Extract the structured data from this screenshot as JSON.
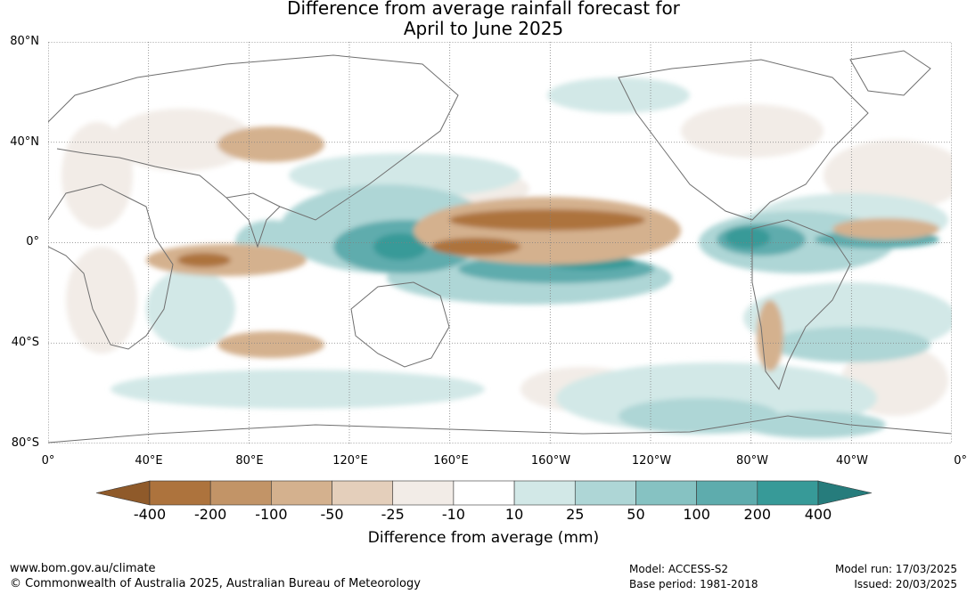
{
  "title": {
    "line1": "Difference from average rainfall forecast for",
    "line2": "April to June 2025"
  },
  "axes": {
    "lat_labels": [
      "80°N",
      "40°N",
      "0°",
      "40°S",
      "80°S"
    ],
    "lon_labels": [
      "0°",
      "40°E",
      "80°E",
      "120°E",
      "160°E",
      "160°W",
      "120°W",
      "80°W",
      "40°W",
      "0°"
    ],
    "lat_range": [
      -80,
      80
    ],
    "lon_range": [
      0,
      360
    ],
    "gridlines": "dotted"
  },
  "colorbar": {
    "labels": [
      "-400",
      "-200",
      "-100",
      "-50",
      "-25",
      "-10",
      "10",
      "25",
      "50",
      "100",
      "200",
      "400"
    ],
    "colors": [
      "#8f5a2a",
      "#ad733d",
      "#c29467",
      "#d4b18e",
      "#e4cfbb",
      "#f2ece7",
      "#ffffff",
      "#d2e8e7",
      "#aed6d6",
      "#86c2c2",
      "#5eacad",
      "#379a98",
      "#267c7c"
    ],
    "title": "Difference from average (mm)",
    "extend": "both"
  },
  "footer": {
    "url": "www.bom.gov.au/climate",
    "copyright": "© Commonwealth of Australia 2025, Australian Bureau of Meteorology",
    "model": "Model: ACCESS-S2",
    "base_period": "Base period: 1981-2018",
    "model_run": "Model run: 17/03/2025",
    "issued": "Issued: 20/03/2025"
  },
  "map_data": {
    "type": "global anomaly map",
    "projection": "equirectangular",
    "features": [
      {
        "name": "central-pacific-dry-band",
        "lon": 180,
        "lat": 5,
        "anomaly": -200
      },
      {
        "name": "west-pacific-wet-band",
        "lon": 125,
        "lat": 5,
        "anomaly": 200
      },
      {
        "name": "south-pacific-wet-band",
        "lon": 210,
        "lat": -10,
        "anomaly": 100
      },
      {
        "name": "south-america-north-wet",
        "lon": 285,
        "lat": 0,
        "anomaly": 200
      },
      {
        "name": "atlantic-itcz-wet",
        "lon": 325,
        "lat": 3,
        "anomaly": 100
      },
      {
        "name": "indian-ocean-dry",
        "lon": 75,
        "lat": -5,
        "anomaly": -100
      },
      {
        "name": "madagascar-wet",
        "lon": 50,
        "lat": -20,
        "anomaly": 50
      },
      {
        "name": "southern-ocean-wet",
        "lon": 240,
        "lat": -55,
        "anomaly": 50
      },
      {
        "name": "south-america-south-dry",
        "lon": 287,
        "lat": -40,
        "anomaly": -100
      },
      {
        "name": "asia-mid-lat-dry",
        "lon": 65,
        "lat": 40,
        "anomaly": -50
      }
    ]
  }
}
